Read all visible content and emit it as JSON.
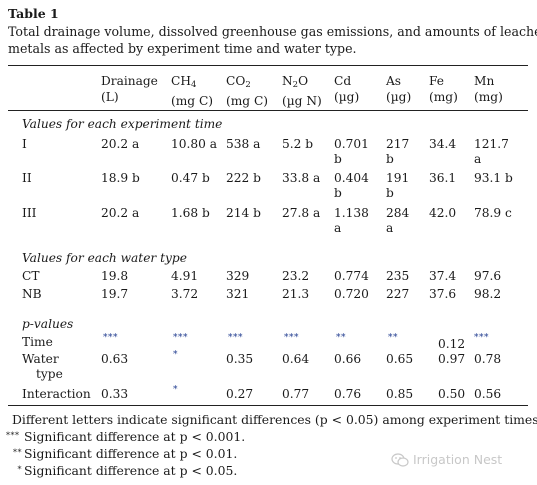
{
  "table": {
    "label": "Table 1",
    "caption_line1": "Total drainage volume, dissolved greenhouse gas emissions, and amounts of leached",
    "caption_line2": "metals as affected by experiment time and water type.",
    "headers": [
      {
        "name": "Drainage",
        "unit": "(L)"
      },
      {
        "name": "CH4",
        "base": "CH",
        "sub": "4",
        "unit": "(mg C)"
      },
      {
        "name": "CO2",
        "base": "CO",
        "sub": "2",
        "unit": "(mg C)"
      },
      {
        "name": "N2O",
        "base": "N",
        "sub": "2",
        "base2": "O",
        "unit": "(µg N)"
      },
      {
        "name": "Cd",
        "unit": "(µg)"
      },
      {
        "name": "As",
        "unit": "(µg)"
      },
      {
        "name": "Fe",
        "unit": "(mg)"
      },
      {
        "name": "Mn",
        "unit": "(mg)"
      }
    ],
    "sections": {
      "time": "Values for each experiment time",
      "water": "Values for each water type",
      "pvalues": "p-values"
    },
    "time_rows": [
      {
        "label": "I",
        "cells": [
          [
            "20.2 a"
          ],
          [
            "10.80 a"
          ],
          [
            "538 a"
          ],
          [
            "5.2 b"
          ],
          [
            "0.701",
            "b"
          ],
          [
            "217",
            "b"
          ],
          [
            "34.4"
          ],
          [
            "121.7",
            "a"
          ]
        ]
      },
      {
        "label": "II",
        "cells": [
          [
            "18.9 b"
          ],
          [
            "0.47 b"
          ],
          [
            "222 b"
          ],
          [
            "33.8 a"
          ],
          [
            "0.404",
            "b"
          ],
          [
            "191",
            "b"
          ],
          [
            "36.1"
          ],
          [
            "93.1 b"
          ]
        ]
      },
      {
        "label": "III",
        "cells": [
          [
            "20.2 a"
          ],
          [
            "1.68 b"
          ],
          [
            "214 b"
          ],
          [
            "27.8 a"
          ],
          [
            "1.138",
            "a"
          ],
          [
            "284",
            "a"
          ],
          [
            "42.0"
          ],
          [
            "78.9 c"
          ]
        ]
      }
    ],
    "water_rows": [
      {
        "label": "CT",
        "cells": [
          "19.8",
          "4.91",
          "329",
          "23.2",
          "0.774",
          "235",
          "37.4",
          "97.6"
        ]
      },
      {
        "label": "NB",
        "cells": [
          "19.7",
          "3.72",
          "321",
          "21.3",
          "0.720",
          "227",
          "37.6",
          "98.2"
        ]
      }
    ],
    "p_rows": [
      {
        "label": "Time",
        "cells": [
          "***",
          "***",
          "***",
          "***",
          "**",
          "**",
          "0.12",
          "***"
        ]
      },
      {
        "label": "Water",
        "label2": "type",
        "cells": [
          "0.63",
          "*",
          "0.35",
          "0.64",
          "0.66",
          "0.65",
          "0.97",
          "0.78"
        ]
      },
      {
        "label": "Interaction",
        "cells": [
          "0.33",
          "*",
          "0.27",
          "0.77",
          "0.76",
          "0.85",
          "0.50",
          "0.56"
        ]
      }
    ],
    "footnotes": {
      "letters": "Different letters indicate significant differences (p < 0.05) among experiment times.",
      "f3": {
        "sym": "***",
        "text": "Significant difference at p < 0.001."
      },
      "f2": {
        "sym": "**",
        "text": "Significant difference at p < 0.01."
      },
      "f1": {
        "sym": "*",
        "text": "Significant difference at p < 0.05."
      }
    }
  },
  "watermark": {
    "text": "Irrigation Nest",
    "icon": "wechat-icon",
    "color": "#c8c8c8"
  }
}
